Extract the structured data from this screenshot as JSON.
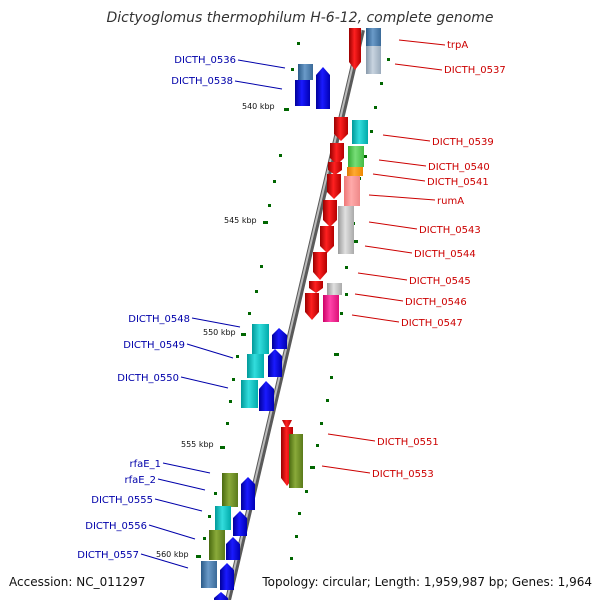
{
  "title": "Dictyoglomus thermophilum H-6-12, complete genome",
  "accession": "Accession: NC_011297",
  "topology": "Topology: circular; Length: 1,959,987 bp; Genes: 1,964",
  "scale_labels": [
    "540 kbp",
    "545 kbp",
    "550 kbp",
    "555 kbp",
    "560 kbp"
  ],
  "colors": {
    "forward_strand_labels": "#cc0000",
    "reverse_strand_labels": "#0000aa",
    "forward_gene": "#ff0000",
    "reverse_gene": "#0000ee",
    "backbone": "#8a8a8a",
    "ticks": "#006600"
  },
  "reverse_strand_labels": [
    "DICTH_0536",
    "DICTH_0538",
    "DICTH_0548",
    "DICTH_0549",
    "DICTH_0550",
    "rfaE_1",
    "rfaE_2",
    "DICTH_0555",
    "DICTH_0556",
    "DICTH_0557"
  ],
  "forward_strand_labels": [
    "trpA",
    "DICTH_0537",
    "DICTH_0539",
    "DICTH_0540",
    "DICTH_0541",
    "rumA",
    "DICTH_0543",
    "DICTH_0544",
    "DICTH_0545",
    "DICTH_0546",
    "DICTH_0547",
    "DICTH_0551",
    "DICTH_0553"
  ]
}
